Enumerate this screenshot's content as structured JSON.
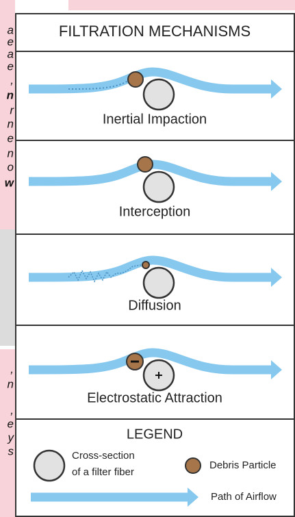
{
  "side_fragments": [
    "a",
    "e",
    "a",
    "e",
    ",",
    "n",
    "r",
    "n",
    "e",
    "n",
    "o",
    "w",
    ",",
    "n",
    ",",
    "e",
    "y",
    "s"
  ],
  "header": {
    "title": "FILTRATION MECHANISMS"
  },
  "panels": [
    {
      "label": "Inertial Impaction"
    },
    {
      "label": "Interception"
    },
    {
      "label": "Diffusion"
    },
    {
      "label": "Electrostatic Attraction"
    }
  ],
  "legend": {
    "title": "LEGEND",
    "fiber_line1": "Cross-section",
    "fiber_line2": "of a filter fiber",
    "particle": "Debris Particle",
    "airflow": "Path of Airflow"
  }
}
